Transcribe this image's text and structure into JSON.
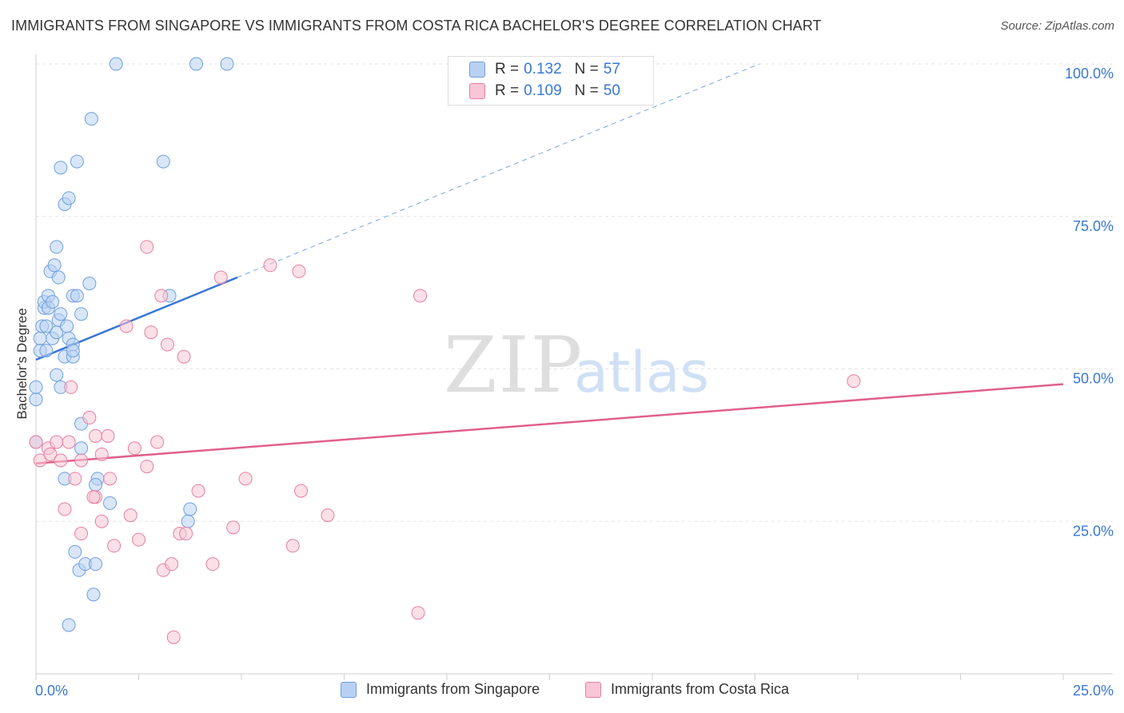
{
  "title": "IMMIGRANTS FROM SINGAPORE VS IMMIGRANTS FROM COSTA RICA BACHELOR'S DEGREE CORRELATION CHART",
  "source": "Source: ZipAtlas.com",
  "watermark": {
    "zip": "ZIP",
    "atlas": "atlas"
  },
  "legend": {
    "r_label": "R =",
    "n_label": "N =",
    "series": [
      {
        "name": "Immigrants from Singapore",
        "r": "0.132",
        "n": "57",
        "color": "#6f9fe0",
        "fill": "#b8d1f3"
      },
      {
        "name": "Immigrants from Costa Rica",
        "r": "0.109",
        "n": "50",
        "color": "#e77fa1",
        "fill": "#f8c6d6"
      }
    ]
  },
  "chart_data": {
    "type": "scatter",
    "title": "IMMIGRANTS FROM SINGAPORE VS IMMIGRANTS FROM COSTA RICA BACHELOR'S DEGREE CORRELATION CHART",
    "xlabel": "",
    "ylabel": "Bachelor's Degree",
    "xlim": [
      0,
      25
    ],
    "ylim": [
      0,
      100
    ],
    "x_tick_labels": [
      "0.0%",
      "25.0%"
    ],
    "y_tick_labels": [
      "25.0%",
      "50.0%",
      "75.0%",
      "100.0%"
    ],
    "y_ticks": [
      25,
      50,
      75,
      100
    ],
    "series": [
      {
        "name": "Immigrants from Singapore",
        "color": "#3a77d4",
        "points": [
          [
            0.0,
            45
          ],
          [
            0.0,
            47
          ],
          [
            0.0,
            38
          ],
          [
            0.1,
            53
          ],
          [
            0.1,
            55
          ],
          [
            0.15,
            57
          ],
          [
            0.2,
            60
          ],
          [
            0.2,
            61
          ],
          [
            0.25,
            53
          ],
          [
            0.3,
            60
          ],
          [
            0.3,
            62
          ],
          [
            0.35,
            66
          ],
          [
            0.4,
            61
          ],
          [
            0.4,
            55
          ],
          [
            0.45,
            67
          ],
          [
            0.5,
            56
          ],
          [
            0.5,
            70
          ],
          [
            0.5,
            49
          ],
          [
            0.55,
            58
          ],
          [
            0.55,
            65
          ],
          [
            0.6,
            59
          ],
          [
            0.6,
            47
          ],
          [
            0.6,
            83
          ],
          [
            0.7,
            77
          ],
          [
            0.7,
            52
          ],
          [
            0.7,
            32
          ],
          [
            0.75,
            57
          ],
          [
            0.8,
            55
          ],
          [
            0.8,
            78
          ],
          [
            0.8,
            8
          ],
          [
            0.9,
            54
          ],
          [
            0.9,
            52
          ],
          [
            0.9,
            62
          ],
          [
            0.9,
            53
          ],
          [
            0.95,
            20
          ],
          [
            1.0,
            62
          ],
          [
            1.0,
            84
          ],
          [
            1.05,
            17
          ],
          [
            1.1,
            59
          ],
          [
            1.1,
            41
          ],
          [
            1.1,
            37
          ],
          [
            1.2,
            18
          ],
          [
            1.3,
            64
          ],
          [
            1.35,
            91
          ],
          [
            1.4,
            13
          ],
          [
            1.45,
            18
          ],
          [
            1.5,
            32
          ],
          [
            1.8,
            28
          ],
          [
            1.95,
            100
          ],
          [
            3.1,
            84
          ],
          [
            3.25,
            62
          ],
          [
            3.7,
            25
          ],
          [
            3.75,
            27
          ],
          [
            3.9,
            100
          ],
          [
            4.65,
            100
          ],
          [
            1.45,
            31
          ],
          [
            0.25,
            57
          ]
        ],
        "trend": {
          "x0": 0.0,
          "y0": 51.5,
          "x1": 4.9,
          "y1": 65.0,
          "dash_to_x": 17.6,
          "dash_to_y": 100
        }
      },
      {
        "name": "Immigrants from Costa Rica",
        "color": "#e0608c",
        "points": [
          [
            0.0,
            38
          ],
          [
            0.1,
            35
          ],
          [
            0.3,
            37
          ],
          [
            0.35,
            36
          ],
          [
            0.5,
            38
          ],
          [
            0.6,
            35
          ],
          [
            0.7,
            27
          ],
          [
            0.8,
            38
          ],
          [
            0.85,
            47
          ],
          [
            0.95,
            32
          ],
          [
            1.1,
            35
          ],
          [
            1.1,
            23
          ],
          [
            1.3,
            42
          ],
          [
            1.45,
            29
          ],
          [
            1.45,
            39
          ],
          [
            1.6,
            36
          ],
          [
            1.6,
            25
          ],
          [
            1.75,
            39
          ],
          [
            1.8,
            32
          ],
          [
            1.9,
            21
          ],
          [
            2.2,
            57
          ],
          [
            2.3,
            26
          ],
          [
            2.4,
            37
          ],
          [
            2.5,
            22
          ],
          [
            2.7,
            70
          ],
          [
            2.7,
            34
          ],
          [
            2.8,
            56
          ],
          [
            2.95,
            38
          ],
          [
            3.05,
            62
          ],
          [
            3.1,
            17
          ],
          [
            3.2,
            54
          ],
          [
            3.3,
            18
          ],
          [
            3.35,
            6
          ],
          [
            3.5,
            23
          ],
          [
            3.6,
            52
          ],
          [
            3.65,
            23
          ],
          [
            3.95,
            30
          ],
          [
            4.3,
            18
          ],
          [
            4.5,
            65
          ],
          [
            4.8,
            24
          ],
          [
            5.1,
            32
          ],
          [
            5.7,
            67
          ],
          [
            6.25,
            21
          ],
          [
            6.4,
            66
          ],
          [
            6.45,
            30
          ],
          [
            7.1,
            26
          ],
          [
            9.3,
            10
          ],
          [
            9.35,
            62
          ],
          [
            19.9,
            48
          ],
          [
            1.4,
            29
          ]
        ],
        "trend": {
          "x0": 0.0,
          "y0": 34.5,
          "x1": 25.0,
          "y1": 47.5
        }
      }
    ]
  }
}
